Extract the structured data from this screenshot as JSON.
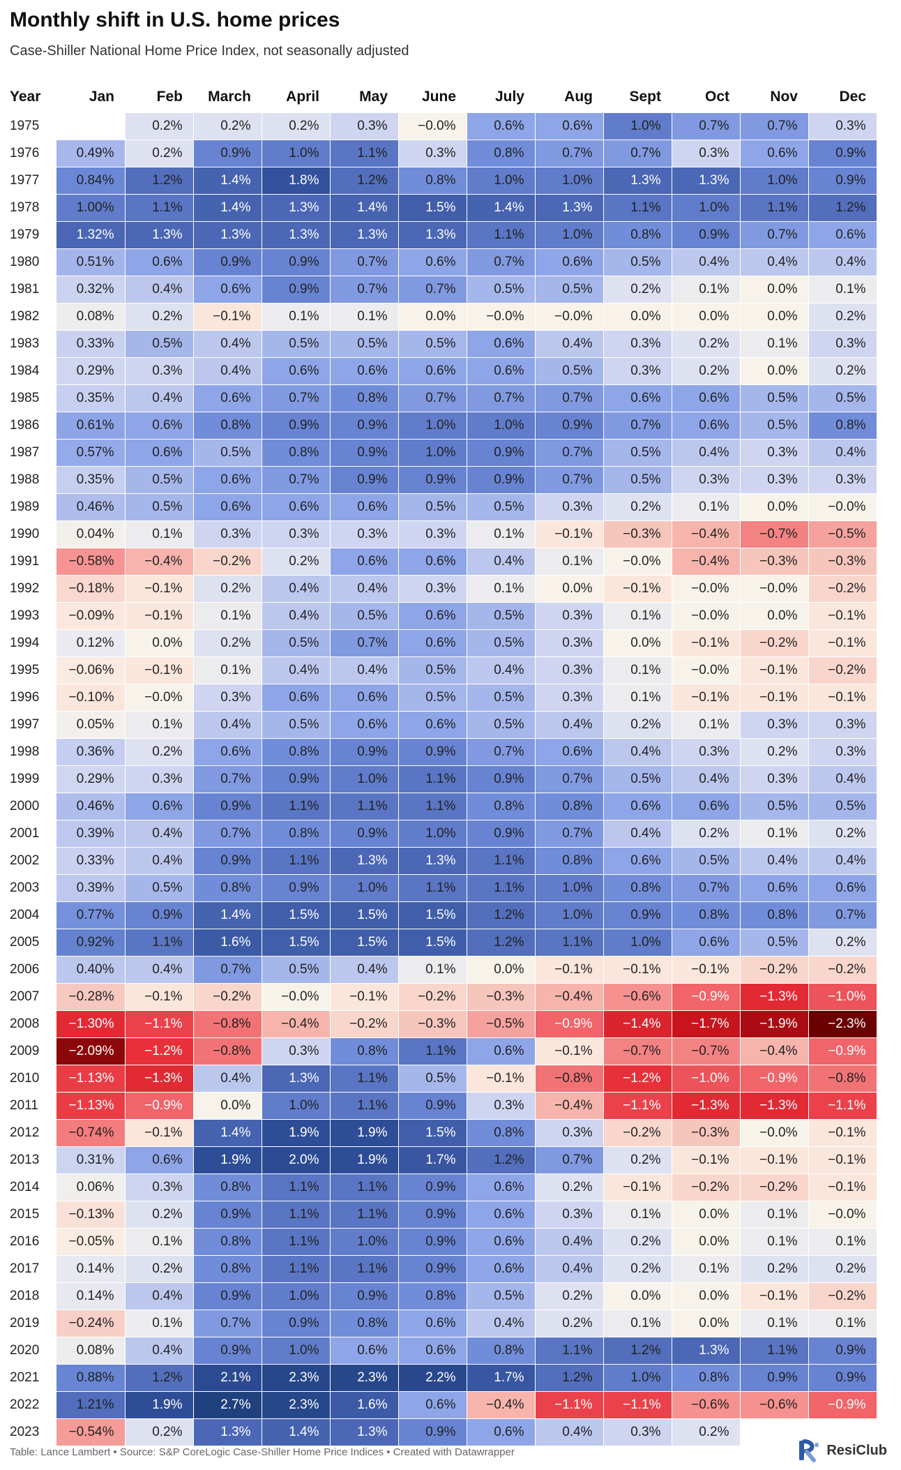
{
  "header": {
    "title": "Monthly shift in U.S. home prices",
    "subtitle": "Case-Shiller National Home Price Index, not seasonally adjusted"
  },
  "footer": {
    "credit": "Table: Lance Lambert • Source: S&P CoreLogic Case-Shiller Home Price Indices • Created with Datawrapper",
    "brand": "ResiClub"
  },
  "colors": {
    "positive_max": "#20407e",
    "neutral": "#f7f3ea",
    "negative_max": "#6b0000",
    "text_dark": "#222222",
    "text_light": "#ffffff"
  },
  "chart_data": {
    "type": "table",
    "year_header": "Year",
    "months": [
      "Jan",
      "Feb",
      "March",
      "April",
      "May",
      "June",
      "July",
      "Aug",
      "Sept",
      "Oct",
      "Nov",
      "Dec"
    ],
    "rows": [
      {
        "year": "1975",
        "cells": [
          "",
          "0.2%",
          "0.2%",
          "0.2%",
          "0.3%",
          "−0.0%",
          "0.6%",
          "0.6%",
          "1.0%",
          "0.7%",
          "0.7%",
          "0.3%"
        ]
      },
      {
        "year": "1976",
        "cells": [
          "0.49%",
          "0.2%",
          "0.9%",
          "1.0%",
          "1.1%",
          "0.3%",
          "0.8%",
          "0.7%",
          "0.7%",
          "0.3%",
          "0.6%",
          "0.9%"
        ]
      },
      {
        "year": "1977",
        "cells": [
          "0.84%",
          "1.2%",
          "1.4%",
          "1.8%",
          "1.2%",
          "0.8%",
          "1.0%",
          "1.0%",
          "1.3%",
          "1.3%",
          "1.0%",
          "0.9%"
        ]
      },
      {
        "year": "1978",
        "cells": [
          "1.00%",
          "1.1%",
          "1.4%",
          "1.3%",
          "1.4%",
          "1.5%",
          "1.4%",
          "1.3%",
          "1.1%",
          "1.0%",
          "1.1%",
          "1.2%"
        ]
      },
      {
        "year": "1979",
        "cells": [
          "1.32%",
          "1.3%",
          "1.3%",
          "1.3%",
          "1.3%",
          "1.3%",
          "1.1%",
          "1.0%",
          "0.8%",
          "0.9%",
          "0.7%",
          "0.6%"
        ]
      },
      {
        "year": "1980",
        "cells": [
          "0.51%",
          "0.6%",
          "0.9%",
          "0.9%",
          "0.7%",
          "0.6%",
          "0.7%",
          "0.6%",
          "0.5%",
          "0.4%",
          "0.4%",
          "0.4%"
        ]
      },
      {
        "year": "1981",
        "cells": [
          "0.32%",
          "0.4%",
          "0.6%",
          "0.9%",
          "0.7%",
          "0.7%",
          "0.5%",
          "0.5%",
          "0.2%",
          "0.1%",
          "0.0%",
          "0.1%"
        ]
      },
      {
        "year": "1982",
        "cells": [
          "0.08%",
          "0.2%",
          "−0.1%",
          "0.1%",
          "0.1%",
          "0.0%",
          "−0.0%",
          "−0.0%",
          "0.0%",
          "0.0%",
          "0.0%",
          "0.2%"
        ]
      },
      {
        "year": "1983",
        "cells": [
          "0.33%",
          "0.5%",
          "0.4%",
          "0.5%",
          "0.5%",
          "0.5%",
          "0.6%",
          "0.4%",
          "0.3%",
          "0.2%",
          "0.1%",
          "0.3%"
        ]
      },
      {
        "year": "1984",
        "cells": [
          "0.29%",
          "0.3%",
          "0.4%",
          "0.6%",
          "0.6%",
          "0.6%",
          "0.6%",
          "0.5%",
          "0.3%",
          "0.2%",
          "0.0%",
          "0.2%"
        ]
      },
      {
        "year": "1985",
        "cells": [
          "0.35%",
          "0.4%",
          "0.6%",
          "0.7%",
          "0.8%",
          "0.7%",
          "0.7%",
          "0.7%",
          "0.6%",
          "0.6%",
          "0.5%",
          "0.5%"
        ]
      },
      {
        "year": "1986",
        "cells": [
          "0.61%",
          "0.6%",
          "0.8%",
          "0.9%",
          "0.9%",
          "1.0%",
          "1.0%",
          "0.9%",
          "0.7%",
          "0.6%",
          "0.5%",
          "0.8%"
        ]
      },
      {
        "year": "1987",
        "cells": [
          "0.57%",
          "0.6%",
          "0.5%",
          "0.8%",
          "0.9%",
          "1.0%",
          "0.9%",
          "0.7%",
          "0.5%",
          "0.4%",
          "0.3%",
          "0.4%"
        ]
      },
      {
        "year": "1988",
        "cells": [
          "0.35%",
          "0.5%",
          "0.6%",
          "0.7%",
          "0.9%",
          "0.9%",
          "0.9%",
          "0.7%",
          "0.5%",
          "0.3%",
          "0.3%",
          "0.3%"
        ]
      },
      {
        "year": "1989",
        "cells": [
          "0.46%",
          "0.5%",
          "0.6%",
          "0.6%",
          "0.6%",
          "0.5%",
          "0.5%",
          "0.3%",
          "0.2%",
          "0.1%",
          "0.0%",
          "−0.0%"
        ]
      },
      {
        "year": "1990",
        "cells": [
          "0.04%",
          "0.1%",
          "0.3%",
          "0.3%",
          "0.3%",
          "0.3%",
          "0.1%",
          "−0.1%",
          "−0.3%",
          "−0.4%",
          "−0.7%",
          "−0.5%"
        ]
      },
      {
        "year": "1991",
        "cells": [
          "−0.58%",
          "−0.4%",
          "−0.2%",
          "0.2%",
          "0.6%",
          "0.6%",
          "0.4%",
          "0.1%",
          "−0.0%",
          "−0.4%",
          "−0.3%",
          "−0.3%"
        ]
      },
      {
        "year": "1992",
        "cells": [
          "−0.18%",
          "−0.1%",
          "0.2%",
          "0.4%",
          "0.4%",
          "0.3%",
          "0.1%",
          "0.0%",
          "−0.1%",
          "−0.0%",
          "−0.0%",
          "−0.2%"
        ]
      },
      {
        "year": "1993",
        "cells": [
          "−0.09%",
          "−0.1%",
          "0.1%",
          "0.4%",
          "0.5%",
          "0.6%",
          "0.5%",
          "0.3%",
          "0.1%",
          "−0.0%",
          "0.0%",
          "−0.1%"
        ]
      },
      {
        "year": "1994",
        "cells": [
          "0.12%",
          "0.0%",
          "0.2%",
          "0.5%",
          "0.7%",
          "0.6%",
          "0.5%",
          "0.3%",
          "0.0%",
          "−0.1%",
          "−0.2%",
          "−0.1%"
        ]
      },
      {
        "year": "1995",
        "cells": [
          "−0.06%",
          "−0.1%",
          "0.1%",
          "0.4%",
          "0.4%",
          "0.5%",
          "0.4%",
          "0.3%",
          "0.1%",
          "−0.0%",
          "−0.1%",
          "−0.2%"
        ]
      },
      {
        "year": "1996",
        "cells": [
          "−0.10%",
          "−0.0%",
          "0.3%",
          "0.6%",
          "0.6%",
          "0.5%",
          "0.5%",
          "0.3%",
          "0.1%",
          "−0.1%",
          "−0.1%",
          "−0.1%"
        ]
      },
      {
        "year": "1997",
        "cells": [
          "0.05%",
          "0.1%",
          "0.4%",
          "0.5%",
          "0.6%",
          "0.6%",
          "0.5%",
          "0.4%",
          "0.2%",
          "0.1%",
          "0.3%",
          "0.3%"
        ]
      },
      {
        "year": "1998",
        "cells": [
          "0.36%",
          "0.2%",
          "0.6%",
          "0.8%",
          "0.9%",
          "0.9%",
          "0.7%",
          "0.6%",
          "0.4%",
          "0.3%",
          "0.2%",
          "0.3%"
        ]
      },
      {
        "year": "1999",
        "cells": [
          "0.29%",
          "0.3%",
          "0.7%",
          "0.9%",
          "1.0%",
          "1.1%",
          "0.9%",
          "0.7%",
          "0.5%",
          "0.4%",
          "0.3%",
          "0.4%"
        ]
      },
      {
        "year": "2000",
        "cells": [
          "0.46%",
          "0.6%",
          "0.9%",
          "1.1%",
          "1.1%",
          "1.1%",
          "0.8%",
          "0.8%",
          "0.6%",
          "0.6%",
          "0.5%",
          "0.5%"
        ]
      },
      {
        "year": "2001",
        "cells": [
          "0.39%",
          "0.4%",
          "0.7%",
          "0.8%",
          "0.9%",
          "1.0%",
          "0.9%",
          "0.7%",
          "0.4%",
          "0.2%",
          "0.1%",
          "0.2%"
        ]
      },
      {
        "year": "2002",
        "cells": [
          "0.33%",
          "0.4%",
          "0.9%",
          "1.1%",
          "1.3%",
          "1.3%",
          "1.1%",
          "0.8%",
          "0.6%",
          "0.5%",
          "0.4%",
          "0.4%"
        ]
      },
      {
        "year": "2003",
        "cells": [
          "0.39%",
          "0.5%",
          "0.8%",
          "0.9%",
          "1.0%",
          "1.1%",
          "1.1%",
          "1.0%",
          "0.8%",
          "0.7%",
          "0.6%",
          "0.6%"
        ]
      },
      {
        "year": "2004",
        "cells": [
          "0.77%",
          "0.9%",
          "1.4%",
          "1.5%",
          "1.5%",
          "1.5%",
          "1.2%",
          "1.0%",
          "0.9%",
          "0.8%",
          "0.8%",
          "0.7%"
        ]
      },
      {
        "year": "2005",
        "cells": [
          "0.92%",
          "1.1%",
          "1.6%",
          "1.5%",
          "1.5%",
          "1.5%",
          "1.2%",
          "1.1%",
          "1.0%",
          "0.6%",
          "0.5%",
          "0.2%"
        ]
      },
      {
        "year": "2006",
        "cells": [
          "0.40%",
          "0.4%",
          "0.7%",
          "0.5%",
          "0.4%",
          "0.1%",
          "0.0%",
          "−0.1%",
          "−0.1%",
          "−0.1%",
          "−0.2%",
          "−0.2%"
        ]
      },
      {
        "year": "2007",
        "cells": [
          "−0.28%",
          "−0.1%",
          "−0.2%",
          "−0.0%",
          "−0.1%",
          "−0.2%",
          "−0.3%",
          "−0.4%",
          "−0.6%",
          "−0.9%",
          "−1.3%",
          "−1.0%"
        ]
      },
      {
        "year": "2008",
        "cells": [
          "−1.30%",
          "−1.1%",
          "−0.8%",
          "−0.4%",
          "−0.2%",
          "−0.3%",
          "−0.5%",
          "−0.9%",
          "−1.4%",
          "−1.7%",
          "−1.9%",
          "−2.3%"
        ]
      },
      {
        "year": "2009",
        "cells": [
          "−2.09%",
          "−1.2%",
          "−0.8%",
          "0.3%",
          "0.8%",
          "1.1%",
          "0.6%",
          "−0.1%",
          "−0.7%",
          "−0.7%",
          "−0.4%",
          "−0.9%"
        ]
      },
      {
        "year": "2010",
        "cells": [
          "−1.13%",
          "−1.3%",
          "0.4%",
          "1.3%",
          "1.1%",
          "0.5%",
          "−0.1%",
          "−0.8%",
          "−1.2%",
          "−1.0%",
          "−0.9%",
          "−0.8%"
        ]
      },
      {
        "year": "2011",
        "cells": [
          "−1.13%",
          "−0.9%",
          "0.0%",
          "1.0%",
          "1.1%",
          "0.9%",
          "0.3%",
          "−0.4%",
          "−1.1%",
          "−1.3%",
          "−1.3%",
          "−1.1%"
        ]
      },
      {
        "year": "2012",
        "cells": [
          "−0.74%",
          "−0.1%",
          "1.4%",
          "1.9%",
          "1.9%",
          "1.5%",
          "0.8%",
          "0.3%",
          "−0.2%",
          "−0.3%",
          "−0.0%",
          "−0.1%"
        ]
      },
      {
        "year": "2013",
        "cells": [
          "0.31%",
          "0.6%",
          "1.9%",
          "2.0%",
          "1.9%",
          "1.7%",
          "1.2%",
          "0.7%",
          "0.2%",
          "−0.1%",
          "−0.1%",
          "−0.1%"
        ]
      },
      {
        "year": "2014",
        "cells": [
          "0.06%",
          "0.3%",
          "0.8%",
          "1.1%",
          "1.1%",
          "0.9%",
          "0.6%",
          "0.2%",
          "−0.1%",
          "−0.2%",
          "−0.2%",
          "−0.1%"
        ]
      },
      {
        "year": "2015",
        "cells": [
          "−0.13%",
          "0.2%",
          "0.9%",
          "1.1%",
          "1.1%",
          "0.9%",
          "0.6%",
          "0.3%",
          "0.1%",
          "0.0%",
          "0.1%",
          "−0.0%"
        ]
      },
      {
        "year": "2016",
        "cells": [
          "−0.05%",
          "0.1%",
          "0.8%",
          "1.1%",
          "1.0%",
          "0.9%",
          "0.6%",
          "0.4%",
          "0.2%",
          "0.0%",
          "0.1%",
          "0.1%"
        ]
      },
      {
        "year": "2017",
        "cells": [
          "0.14%",
          "0.2%",
          "0.8%",
          "1.1%",
          "1.1%",
          "0.9%",
          "0.6%",
          "0.4%",
          "0.2%",
          "0.1%",
          "0.2%",
          "0.2%"
        ]
      },
      {
        "year": "2018",
        "cells": [
          "0.14%",
          "0.4%",
          "0.9%",
          "1.0%",
          "0.9%",
          "0.8%",
          "0.5%",
          "0.2%",
          "0.0%",
          "0.0%",
          "−0.1%",
          "−0.2%"
        ]
      },
      {
        "year": "2019",
        "cells": [
          "−0.24%",
          "0.1%",
          "0.7%",
          "0.9%",
          "0.8%",
          "0.6%",
          "0.4%",
          "0.2%",
          "0.1%",
          "0.0%",
          "0.1%",
          "0.1%"
        ]
      },
      {
        "year": "2020",
        "cells": [
          "0.08%",
          "0.4%",
          "0.9%",
          "1.0%",
          "0.6%",
          "0.6%",
          "0.8%",
          "1.1%",
          "1.2%",
          "1.3%",
          "1.1%",
          "0.9%"
        ]
      },
      {
        "year": "2021",
        "cells": [
          "0.88%",
          "1.2%",
          "2.1%",
          "2.3%",
          "2.3%",
          "2.2%",
          "1.7%",
          "1.2%",
          "1.0%",
          "0.8%",
          "0.9%",
          "0.9%"
        ]
      },
      {
        "year": "2022",
        "cells": [
          "1.21%",
          "1.9%",
          "2.7%",
          "2.3%",
          "1.6%",
          "0.6%",
          "−0.4%",
          "−1.1%",
          "−1.1%",
          "−0.6%",
          "−0.6%",
          "−0.9%"
        ]
      },
      {
        "year": "2023",
        "cells": [
          "−0.54%",
          "0.2%",
          "1.3%",
          "1.4%",
          "1.3%",
          "0.9%",
          "0.6%",
          "0.4%",
          "0.3%",
          "0.2%",
          "",
          ""
        ]
      }
    ]
  }
}
